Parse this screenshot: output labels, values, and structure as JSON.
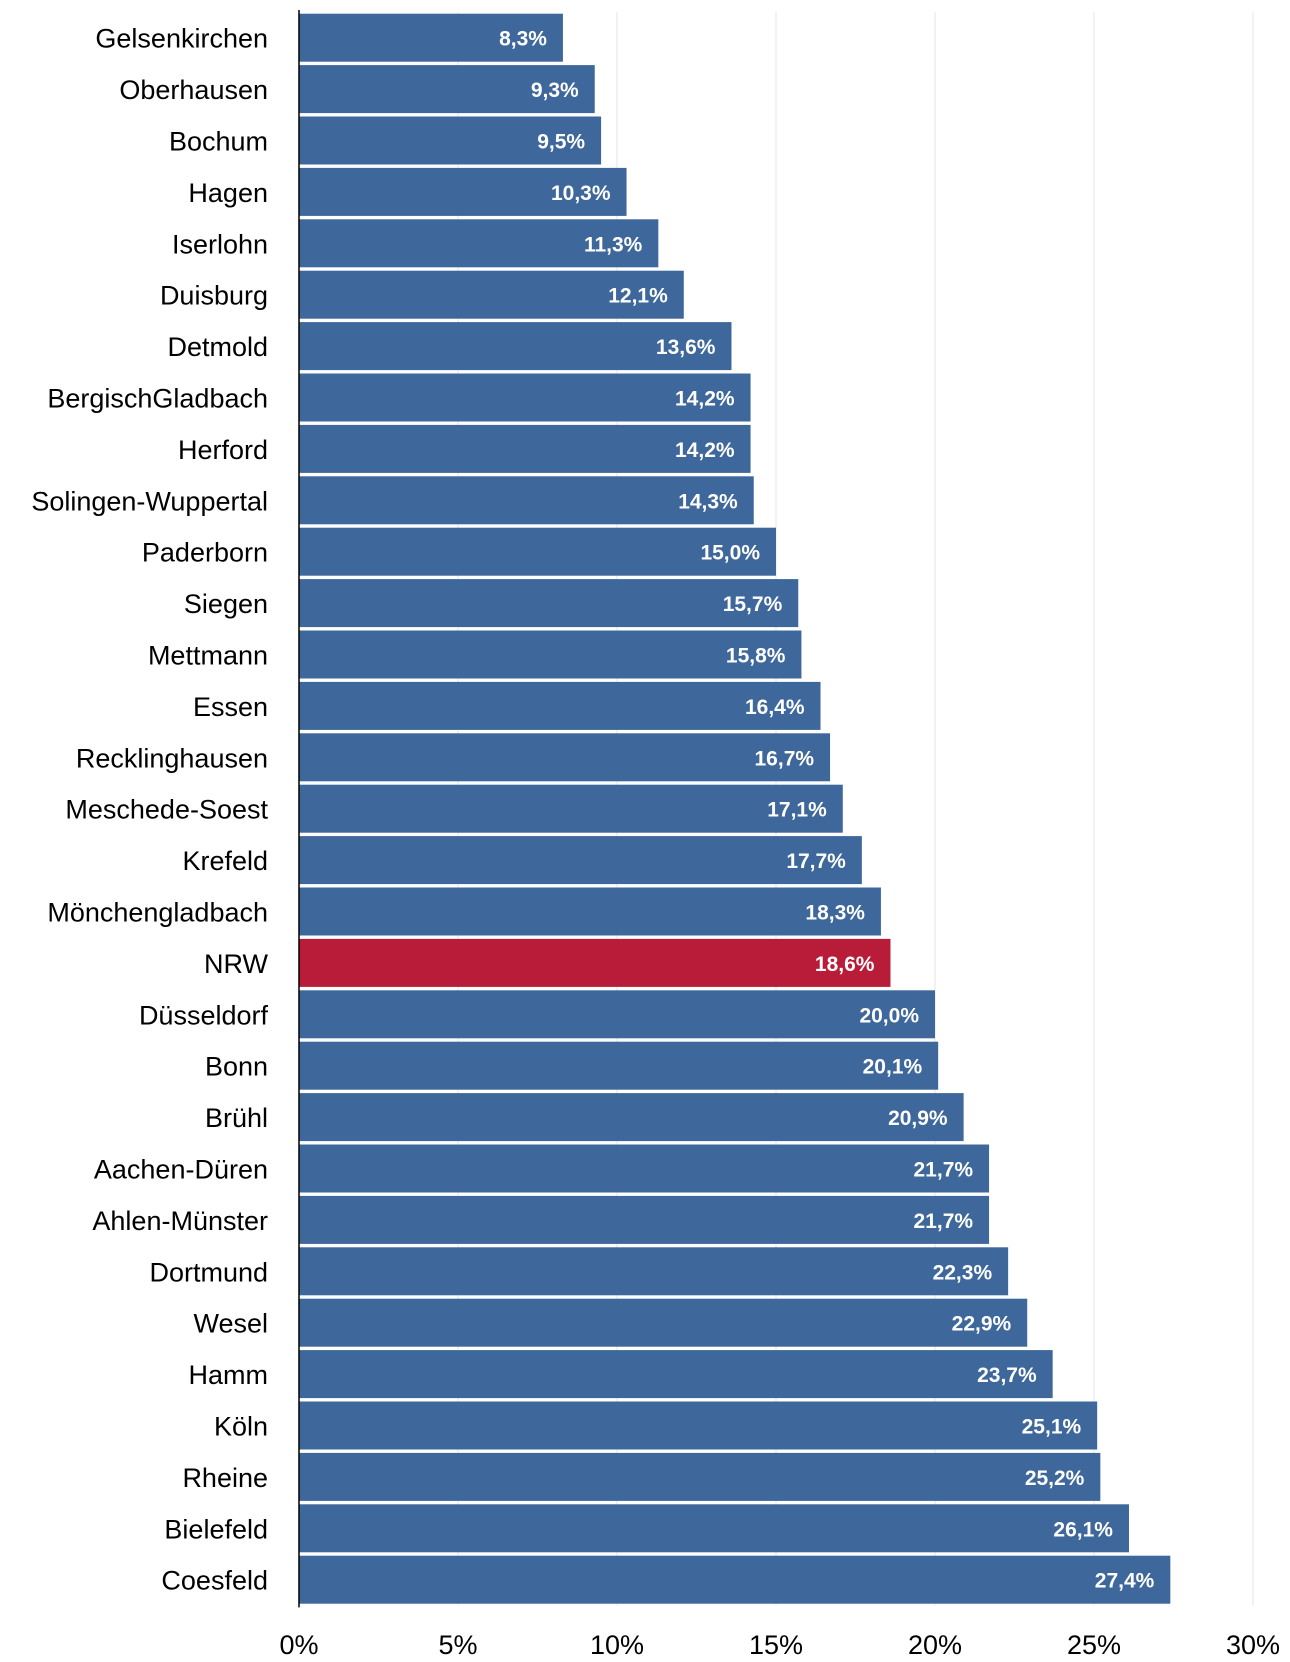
{
  "chart_data": {
    "type": "bar",
    "orientation": "horizontal",
    "title": "",
    "xlabel": "",
    "ylabel": "",
    "xlim": [
      0,
      30
    ],
    "x_ticks": [
      "0%",
      "5%",
      "10%",
      "15%",
      "20%",
      "25%",
      "30%"
    ],
    "grid": "vertical",
    "colors": {
      "default": "#3e679b",
      "highlight": "#b91c38"
    },
    "highlight": "NRW",
    "categories": [
      "Gelsenkirchen",
      "Oberhausen",
      "Bochum",
      "Hagen",
      "Iserlohn",
      "Duisburg",
      "Detmold",
      "BergischGladbach",
      "Herford",
      "Solingen-Wuppertal",
      "Paderborn",
      "Siegen",
      "Mettmann",
      "Essen",
      "Recklinghausen",
      "Meschede-Soest",
      "Krefeld",
      "Mönchengladbach",
      "NRW",
      "Düsseldorf",
      "Bonn",
      "Brühl",
      "Aachen-Düren",
      "Ahlen-Münster",
      "Dortmund",
      "Wesel",
      "Hamm",
      "Köln",
      "Rheine",
      "Bielefeld",
      "Coesfeld"
    ],
    "values": [
      8.3,
      9.3,
      9.5,
      10.3,
      11.3,
      12.1,
      13.6,
      14.2,
      14.2,
      14.3,
      15.0,
      15.7,
      15.8,
      16.4,
      16.7,
      17.1,
      17.7,
      18.3,
      18.6,
      20.0,
      20.1,
      20.9,
      21.7,
      21.7,
      22.3,
      22.9,
      23.7,
      25.1,
      25.2,
      26.1,
      27.4
    ],
    "value_labels": [
      "8,3%",
      "9,3%",
      "9,5%",
      "10,3%",
      "11,3%",
      "12,1%",
      "13,6%",
      "14,2%",
      "14,2%",
      "14,3%",
      "15,0%",
      "15,7%",
      "15,8%",
      "16,4%",
      "16,7%",
      "17,1%",
      "17,7%",
      "18,3%",
      "18,6%",
      "20,0%",
      "20,1%",
      "20,9%",
      "21,7%",
      "21,7%",
      "22,3%",
      "22,9%",
      "23,7%",
      "25,1%",
      "25,2%",
      "26,1%",
      "27,4%"
    ]
  }
}
